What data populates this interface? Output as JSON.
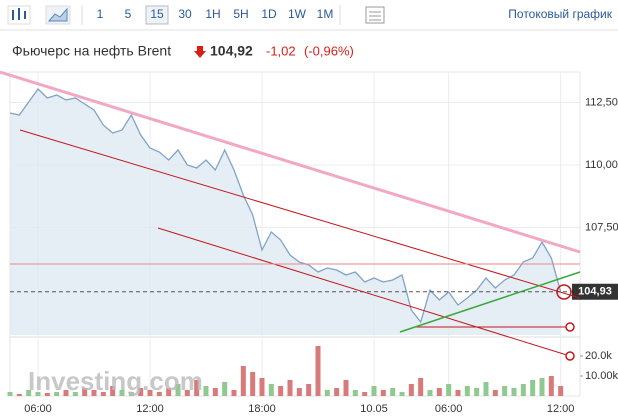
{
  "toolbar": {
    "intervals": [
      "1",
      "5",
      "15",
      "30",
      "1H",
      "5H",
      "1D",
      "1W",
      "1M"
    ],
    "chart_mode": "Потоковый график"
  },
  "header": {
    "title": "Фьючерс на нефть Brent",
    "price": "104,92",
    "change": "-1,02",
    "change_percent": "(-0,96%)"
  },
  "chart_data": {
    "type": "area",
    "categories": [
      null,
      null,
      null,
      "06:00",
      null,
      null,
      null,
      null,
      null,
      null,
      null,
      null,
      null,
      null,
      null,
      "12:00",
      null,
      null,
      null,
      null,
      null,
      null,
      null,
      null,
      null,
      null,
      null,
      "18:00",
      null,
      null,
      null,
      null,
      null,
      null,
      null,
      null,
      null,
      null,
      null,
      "10.05",
      null,
      null,
      null,
      null,
      null,
      null,
      null,
      "06:00",
      null,
      null,
      null,
      null,
      null,
      null,
      null,
      null,
      null,
      null,
      null,
      "12:00"
    ],
    "values": [
      112.08,
      112.0,
      112.52,
      113.04,
      112.68,
      112.8,
      112.6,
      112.68,
      112.44,
      112.2,
      111.6,
      111.28,
      111.4,
      112.0,
      111.2,
      110.68,
      110.52,
      110.2,
      110.6,
      110.0,
      109.88,
      110.2,
      109.8,
      110.6,
      109.8,
      108.8,
      108.0,
      106.6,
      107.32,
      107.0,
      106.4,
      106.12,
      106.0,
      105.72,
      105.88,
      105.8,
      105.6,
      105.72,
      105.32,
      105.48,
      105.32,
      105.4,
      105.6,
      104.2,
      103.72,
      105.0,
      104.6,
      104.92,
      104.4,
      104.68,
      105.0,
      105.48,
      105.08,
      105.4,
      105.6,
      106.12,
      106.28,
      106.92,
      106.28,
      104.93
    ],
    "color": "#7fa3cb",
    "ylim": [
      103.2,
      113.4
    ],
    "yticks": [
      {
        "value": 107.5,
        "label": "107,50"
      },
      {
        "value": 110,
        "label": "110,00"
      },
      {
        "value": 112.5,
        "label": "112,50"
      }
    ],
    "grid": true,
    "last_value": {
      "value": 104.93,
      "label": "104,93"
    },
    "volume": {
      "values": [
        2000,
        1000,
        3000,
        2000,
        1500,
        2000,
        3000,
        2000,
        4000,
        3000,
        2000,
        5000,
        3000,
        2000,
        4000,
        3000,
        2000,
        4000,
        6000,
        3000,
        8000,
        5000,
        4000,
        7000,
        3000,
        15000,
        12000,
        9000,
        6000,
        5000,
        8000,
        4000,
        6000,
        25000,
        3000,
        4000,
        8000,
        3000,
        2000,
        5000,
        3000,
        4000,
        2000,
        6000,
        9000,
        3000,
        4000,
        6000,
        3000,
        5000,
        4000,
        7000,
        3000,
        5000,
        4000,
        6000,
        8000,
        9000,
        10000,
        5000
      ],
      "ylim": [
        0,
        30000
      ],
      "yticks": [
        {
          "value": 10000,
          "label": "10.00k"
        },
        {
          "value": 20000,
          "label": "20.0k"
        }
      ],
      "up_color": "#8fc98f",
      "down_color": "#d87a7a"
    },
    "watermark": "Investing.com"
  }
}
